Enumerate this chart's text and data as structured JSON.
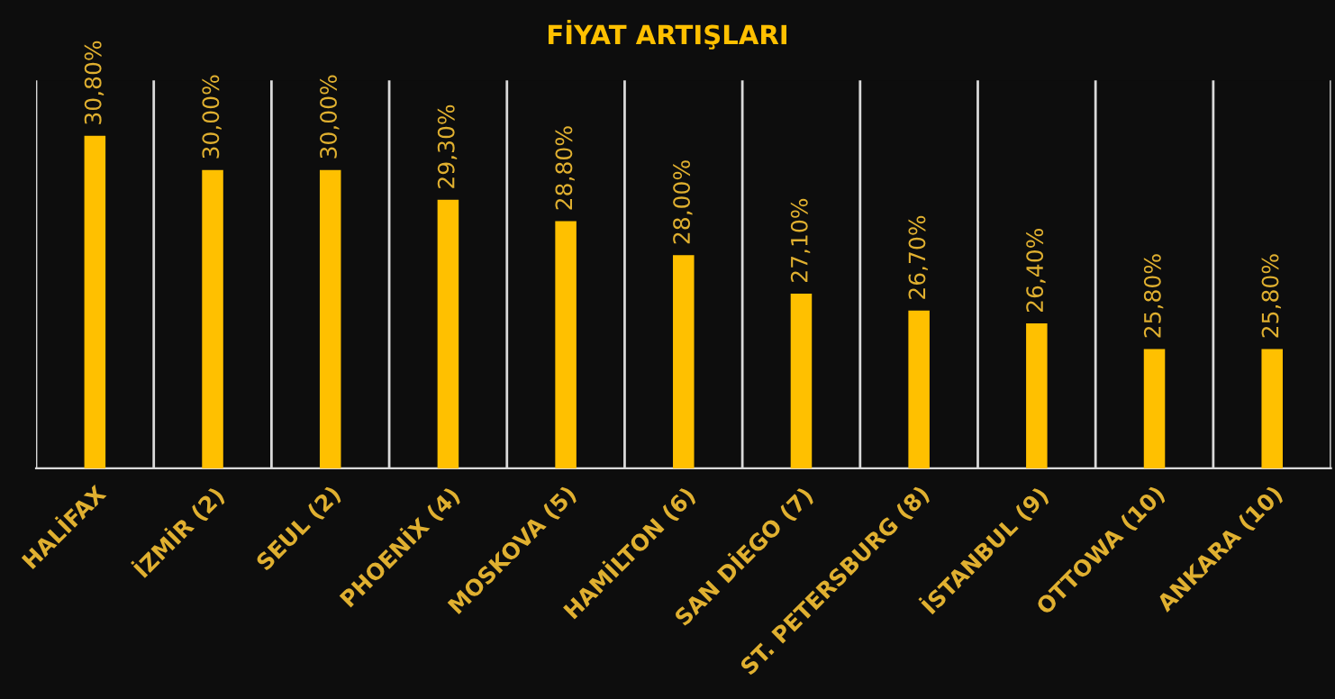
{
  "chart_data": {
    "type": "bar",
    "title": "FİYAT ARTIŞLARI",
    "categories": [
      "HALİFAX",
      "İZMİR (2)",
      "SEUL (2)",
      "PHOENİX (4)",
      "MOSKOVA (5)",
      "HAMİLTON (6)",
      "SAN DİEGO (7)",
      "ST. PETERSBURG (8)",
      "İSTANBUL (9)",
      "OTTOWA (10)",
      "ANKARA (10)"
    ],
    "values": [
      30.8,
      30.0,
      30.0,
      29.3,
      28.8,
      28.0,
      27.1,
      26.7,
      26.4,
      25.8,
      25.8
    ],
    "value_labels": [
      "30,80%",
      "30,00%",
      "30,00%",
      "29,30%",
      "28,80%",
      "28,00%",
      "27,10%",
      "26,70%",
      "26,40%",
      "25,80%",
      "25,80%"
    ],
    "color": "#ffc000",
    "ylim": [
      23,
      32.1
    ],
    "tick_labels": "x",
    "grid": "x",
    "legend": false
  }
}
